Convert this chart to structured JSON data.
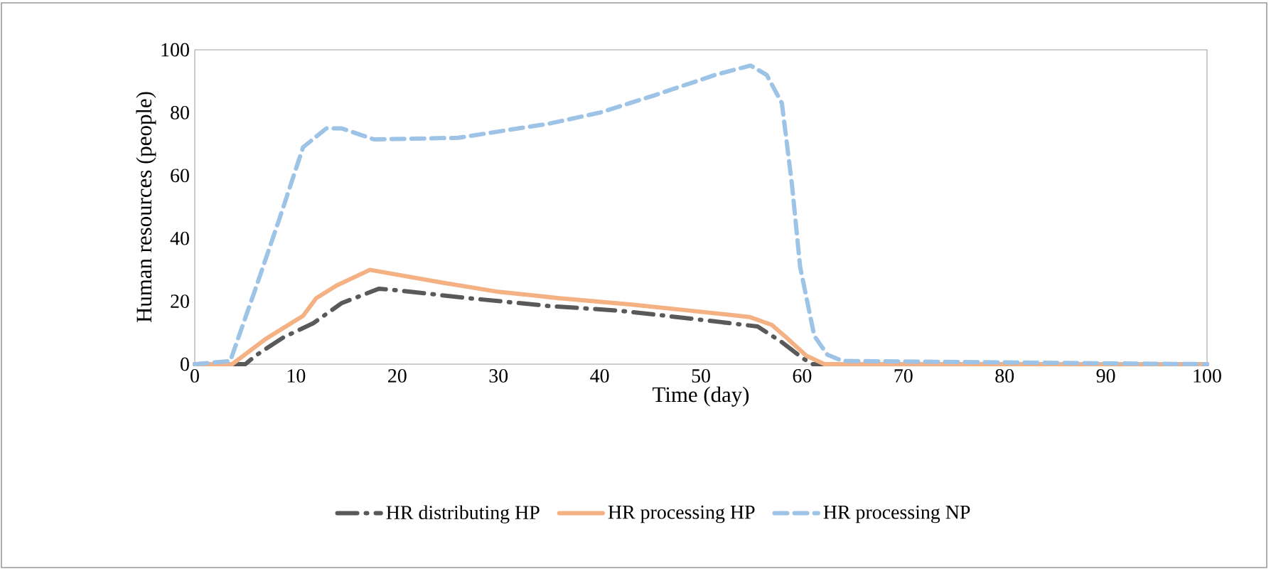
{
  "chart_data": {
    "type": "line",
    "xlabel": "Time (day)",
    "ylabel": "Human resources (people)",
    "xlim": [
      0,
      100
    ],
    "ylim": [
      0,
      100
    ],
    "xticks": [
      0,
      10,
      20,
      30,
      40,
      50,
      60,
      70,
      80,
      90,
      100
    ],
    "yticks": [
      0,
      20,
      40,
      60,
      80,
      100
    ],
    "grid": false,
    "legend": "bottom",
    "series": [
      {
        "name": "HR distributing HP",
        "color": "#595959",
        "line_style": "dashdot",
        "x": [
          0,
          5,
          6,
          8.8,
          11.7,
          14.5,
          18.2,
          20,
          27,
          35,
          42,
          49,
          55.6,
          58,
          60,
          61,
          65,
          100
        ],
        "values": [
          0,
          0,
          2.7,
          8.6,
          13,
          19.4,
          24,
          23.5,
          21,
          18.5,
          17,
          14.5,
          12,
          7,
          2,
          0,
          0,
          0
        ]
      },
      {
        "name": "HR processing HP",
        "color": "#f4b183",
        "line_style": "solid",
        "x": [
          0,
          3.7,
          7,
          10.7,
          12,
          14,
          17.3,
          24.3,
          30,
          36,
          43,
          49,
          54.8,
          57,
          58.4,
          60.4,
          62.2,
          100
        ],
        "values": [
          0,
          0,
          8,
          15.4,
          21,
          25,
          30,
          26,
          23,
          21,
          19,
          17,
          15,
          12.5,
          8.6,
          2.7,
          0,
          0
        ]
      },
      {
        "name": "HR processing NP",
        "color": "#9dc3e6",
        "line_style": "dashed",
        "x": [
          0,
          3.5,
          6,
          8.4,
          10.7,
          13,
          14.5,
          17.7,
          26,
          35,
          40,
          45.4,
          51.4,
          54.9,
          56.5,
          58,
          59,
          59.8,
          61.2,
          62.5,
          64,
          100
        ],
        "values": [
          0,
          1,
          24,
          46.6,
          69,
          75,
          75,
          71.5,
          72,
          76.5,
          80,
          85.5,
          92,
          95,
          92,
          83,
          57,
          31,
          9,
          3,
          1,
          0
        ]
      }
    ]
  }
}
